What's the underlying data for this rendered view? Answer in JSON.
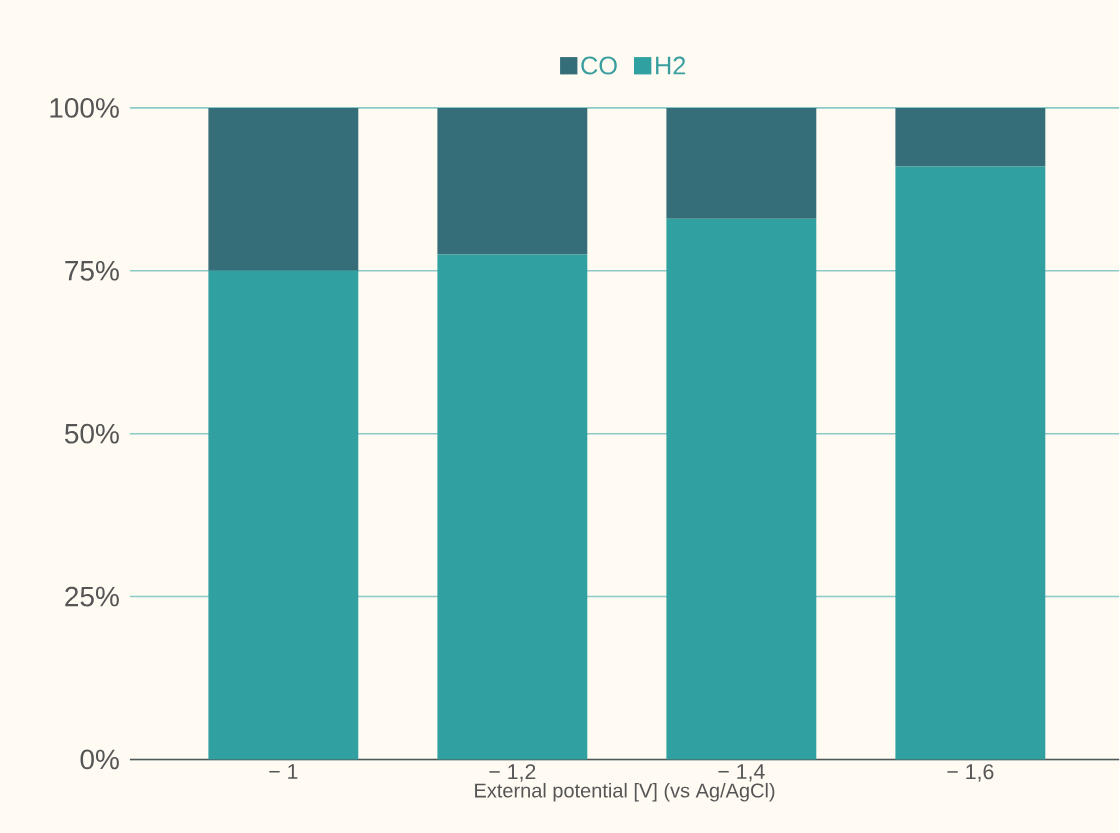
{
  "chart_data": {
    "type": "bar",
    "stacked": true,
    "categories": [
      "− 1",
      "− 1,2",
      "− 1,4",
      "− 1,6"
    ],
    "series": [
      {
        "name": "H2",
        "color": "#30a0a0",
        "values": [
          75,
          77.5,
          83,
          91
        ]
      },
      {
        "name": "CO",
        "color": "#356d78",
        "values": [
          25,
          22.5,
          17,
          9
        ]
      }
    ],
    "xlabel": "External potential [V] (vs Ag/AgCl)",
    "ylim": [
      0,
      100
    ],
    "yticks": [
      {
        "value": 0,
        "label": "0%"
      },
      {
        "value": 25,
        "label": "25%"
      },
      {
        "value": 50,
        "label": "50%"
      },
      {
        "value": 75,
        "label": "75%"
      },
      {
        "value": 100,
        "label": "100%"
      }
    ],
    "grid": "y",
    "legend": "top"
  }
}
